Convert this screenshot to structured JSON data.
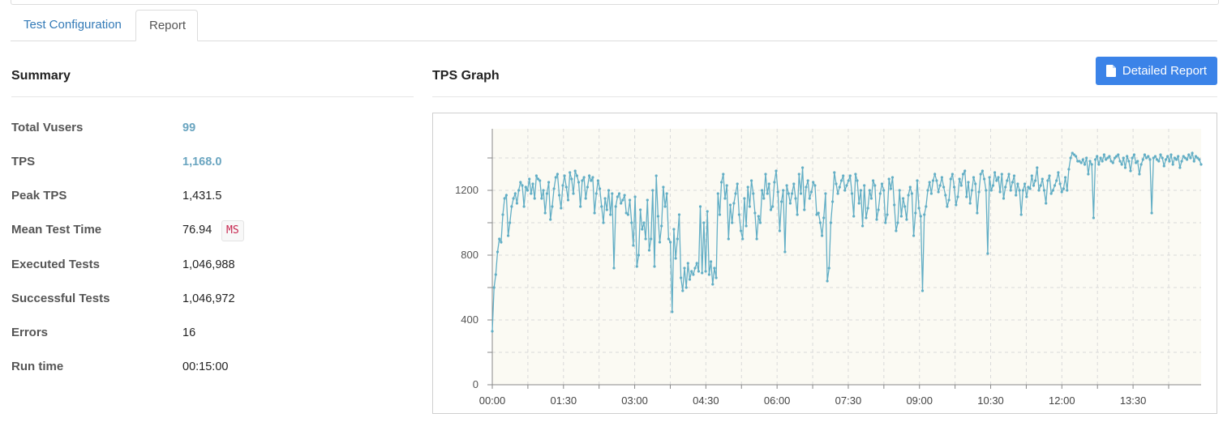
{
  "tabs": {
    "config_label": "Test Configuration",
    "report_label": "Report"
  },
  "summary": {
    "title": "Summary",
    "rows": [
      {
        "label": "Total Vusers",
        "value": "99"
      },
      {
        "label": "TPS",
        "value": "1,168.0"
      },
      {
        "label": "Peak TPS",
        "value": "1,431.5"
      },
      {
        "label": "Mean Test Time",
        "value": "76.94",
        "unit": "MS"
      },
      {
        "label": "Executed Tests",
        "value": "1,046,988"
      },
      {
        "label": "Successful Tests",
        "value": "1,046,972"
      },
      {
        "label": "Errors",
        "value": "16"
      },
      {
        "label": "Run time",
        "value": "00:15:00"
      }
    ]
  },
  "graph": {
    "title": "TPS Graph",
    "detailed_report_label": "Detailed Report"
  },
  "colors": {
    "accent": "#3b83e8",
    "link": "#337ab7",
    "series": "#62aec5",
    "plot_bg": "#fbfaf3"
  },
  "chart_data": {
    "type": "line",
    "title": "",
    "xlabel": "",
    "ylabel": "",
    "x_ticks": [
      "00:00",
      "01:30",
      "03:00",
      "04:30",
      "06:00",
      "07:30",
      "09:00",
      "10:30",
      "12:00",
      "13:30"
    ],
    "x_tick_seconds": [
      0,
      90,
      180,
      270,
      360,
      450,
      540,
      630,
      720,
      810
    ],
    "xlim_seconds": [
      0,
      896
    ],
    "y_ticks": [
      0,
      400,
      800,
      1200
    ],
    "ylim": [
      0,
      1580
    ],
    "grid": true,
    "series": [
      {
        "values": [
          330,
          600,
          680,
          820,
          900,
          880,
          1050,
          1150,
          1170,
          920,
          1000,
          1100,
          1150,
          1180,
          1120,
          1200,
          1250,
          1230,
          1100,
          1220,
          1200,
          1270,
          1180,
          1240,
          1150,
          1290,
          1270,
          1260,
          1150,
          1200,
          1060,
          1180,
          1250,
          1020,
          1100,
          1210,
          1280,
          1300,
          1170,
          1090,
          1230,
          1290,
          1220,
          1140,
          1310,
          1270,
          1180,
          1320,
          1290,
          1250,
          1100,
          1260,
          1280,
          1150,
          1220,
          1290,
          1260,
          1280,
          1060,
          1180,
          1260,
          1210,
          1100,
          1000,
          1150,
          1080,
          1200,
          1050,
          1180,
          720,
          1100,
          1160,
          1180,
          1120,
          1140,
          1170,
          1060,
          1050,
          1140,
          1000,
          860,
          1160,
          730,
          800,
          1080,
          960,
          1000,
          900,
          1140,
          830,
          900,
          1200,
          730,
          1290,
          1040,
          880,
          980,
          1220,
          1100,
          1180,
          900,
          880,
          450,
          960,
          780,
          900,
          1050,
          660,
          580,
          720,
          600,
          750,
          650,
          700,
          680,
          720,
          750,
          700,
          1100,
          690,
          1000,
          700,
          1070,
          680,
          760,
          620,
          720,
          660,
          1180,
          1050,
          1250,
          1300,
          1150,
          1230,
          900,
          1110,
          1000,
          1120,
          1180,
          1240,
          1050,
          950,
          900,
          1150,
          980,
          1220,
          1100,
          1260,
          1180,
          1060,
          900,
          1040,
          1000,
          1200,
          1150,
          1300,
          1180,
          1240,
          1080,
          1100,
          1250,
          1320,
          1190,
          950,
          1130,
          1200,
          820,
          1230,
          1180,
          1120,
          1180,
          1240,
          1150,
          1050,
          1300,
          1180,
          1340,
          1080,
          1220,
          1260,
          1150,
          1190,
          1250,
          1230,
          1050,
          1060,
          1000,
          920,
          1030,
          1180,
          640,
          720,
          1000,
          1130,
          1310,
          1240,
          1180,
          1220,
          1260,
          1290,
          1200,
          1230,
          1260,
          1290,
          1180,
          1040,
          1300,
          1260,
          1120,
          1200,
          980,
          1230,
          1030,
          1090,
          1200,
          1150,
          1260,
          1230,
          1020,
          1080,
          1180,
          1240,
          1200,
          1000,
          1050,
          1270,
          1210,
          1280,
          1110,
          950,
          1000,
          1200,
          1040,
          1150,
          1100,
          1020,
          1170,
          1220,
          1180,
          920,
          1060,
          1260,
          1090,
          1040,
          580,
          1050,
          1100,
          1200,
          1250,
          1180,
          1260,
          1300,
          1260,
          1190,
          1230,
          1280,
          1220,
          1170,
          1100,
          1140,
          1270,
          1300,
          1220,
          1110,
          1160,
          1270,
          1230,
          1300,
          1320,
          1160,
          1250,
          1120,
          1200,
          1280,
          1240,
          1060,
          1190,
          1300,
          1320,
          1270,
          1200,
          810,
          1280,
          1200,
          1230,
          1310,
          1260,
          1280,
          1190,
          1300,
          1150,
          1220,
          1260,
          1300,
          1200,
          1250,
          1290,
          1170,
          1240,
          1200,
          1050,
          1200,
          1240,
          1160,
          1220,
          1210,
          1290,
          1230,
          1260,
          1340,
          1200,
          1230,
          1270,
          1200,
          1120,
          1260,
          1290,
          1180,
          1200,
          1230,
          1260,
          1310,
          1240,
          1190,
          1210,
          1280,
          1200,
          1330,
          1400,
          1430,
          1420,
          1410,
          1380,
          1380,
          1370,
          1390,
          1360,
          1400,
          1300,
          1380,
          1360,
          1030,
          1390,
          1410,
          1360,
          1400,
          1380,
          1420,
          1390,
          1400,
          1410,
          1380,
          1370,
          1400,
          1410,
          1420,
          1380,
          1360,
          1400,
          1340,
          1410,
          1380,
          1320,
          1400,
          1420,
          1370,
          1380,
          1300,
          1360,
          1390,
          1420,
          1400,
          1410,
          1390,
          1060,
          1400,
          1410,
          1390,
          1380,
          1420,
          1400,
          1350,
          1390,
          1410,
          1380,
          1420,
          1360,
          1400,
          1390,
          1410,
          1340,
          1380,
          1410,
          1400,
          1390,
          1420,
          1400,
          1430,
          1380,
          1410,
          1400,
          1390,
          1360
        ]
      }
    ]
  }
}
